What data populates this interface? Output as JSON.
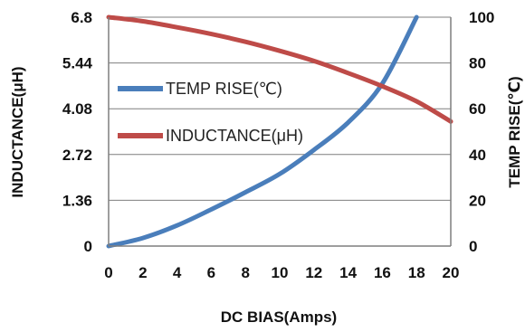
{
  "chart_data": {
    "type": "line",
    "xlabel": "DC  BIAS(Amps)",
    "ylabel_left": "INDUCTANCE(μH)",
    "ylabel_right": "TEMP RISE(℃)",
    "xlim": [
      0,
      20
    ],
    "ylim_left": [
      0,
      6.8
    ],
    "ylim_right": [
      0,
      100
    ],
    "x_ticks": [
      "0",
      "2",
      "4",
      "6",
      "8",
      "10",
      "12",
      "14",
      "16",
      "18",
      "20"
    ],
    "y_left_ticks": [
      "0",
      "1.36",
      "2.72",
      "4.08",
      "5.44",
      "6.8"
    ],
    "y_right_ticks": [
      "0",
      "20",
      "40",
      "60",
      "80",
      "100"
    ],
    "grid": true,
    "legend_position": "left-middle",
    "series": [
      {
        "name": "TEMP RISE(℃)",
        "axis": "right",
        "color": "#4a7ebb",
        "x": [
          0,
          2,
          4,
          6,
          8,
          10,
          12,
          14,
          16,
          18
        ],
        "values": [
          0,
          3.5,
          9,
          16,
          23.5,
          31.5,
          42,
          54,
          71,
          100
        ]
      },
      {
        "name": "INDUCTANCE(μH)",
        "axis": "left",
        "color": "#be4b48",
        "x": [
          0,
          2,
          4,
          6,
          8,
          10,
          12,
          14,
          16,
          18,
          20
        ],
        "values": [
          6.8,
          6.68,
          6.5,
          6.3,
          6.07,
          5.8,
          5.5,
          5.14,
          4.75,
          4.3,
          3.7
        ]
      }
    ]
  }
}
